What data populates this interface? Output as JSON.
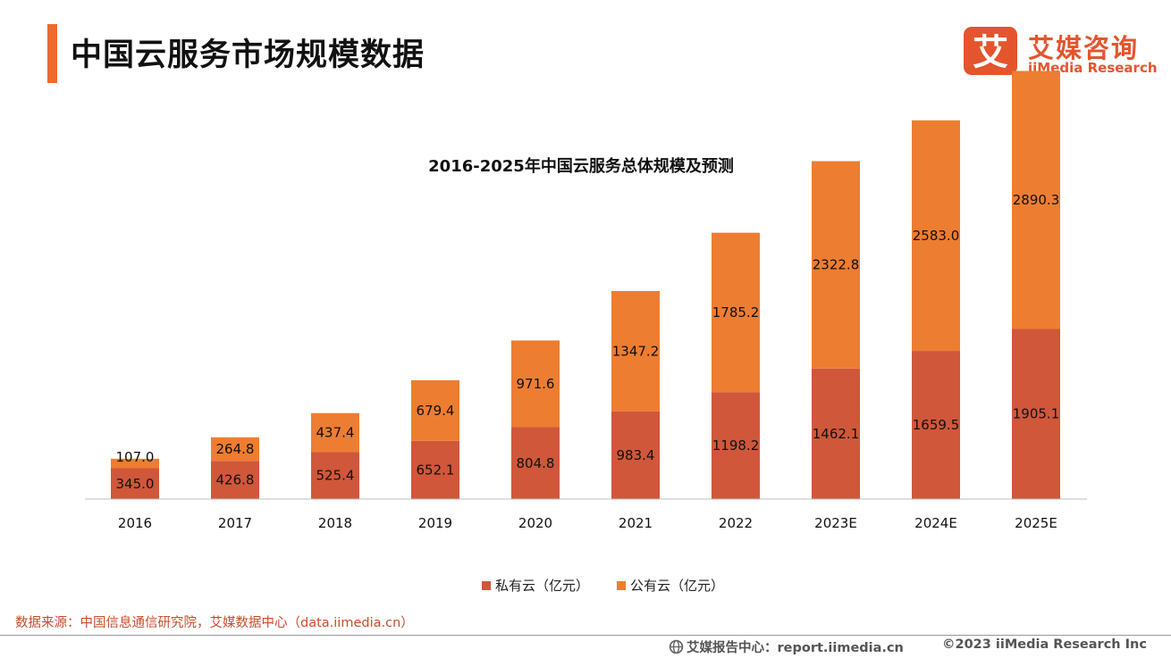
{
  "header": {
    "title": "中国云服务市场规模数据",
    "accent_color": "#ee6a2e"
  },
  "logo": {
    "mark_glyph": "艾",
    "name_cn": "艾媒咨询",
    "name_en": "iiMedia Research",
    "color": "#e4552d"
  },
  "chart_data": {
    "type": "bar",
    "stacked": true,
    "title": "2016-2025年中国云服务总体规模及预测",
    "categories": [
      "2016",
      "2017",
      "2018",
      "2019",
      "2020",
      "2021",
      "2022",
      "2023E",
      "2024E",
      "2025E"
    ],
    "series": [
      {
        "name": "私有云（亿元）",
        "color": "#d0573a",
        "values": [
          345.0,
          426.8,
          525.4,
          652.1,
          804.8,
          983.4,
          1198.2,
          1462.1,
          1659.5,
          1905.1
        ],
        "labels": [
          "345.0",
          "426.8",
          "525.4",
          "652.1",
          "804.8",
          "983.4",
          "1198.2",
          "1462.1",
          "1659.5",
          "1905.1"
        ]
      },
      {
        "name": "公有云（亿元）",
        "color": "#ed7d31",
        "values": [
          107.0,
          264.8,
          437.4,
          679.4,
          971.6,
          1347.2,
          1785.2,
          2322.8,
          2583.0,
          2890.3
        ],
        "labels": [
          "107.0",
          "264.8",
          "437.4",
          "679.4",
          "971.6",
          "1347.2",
          "1785.2",
          "2322.8",
          "2583.0",
          "2890.3"
        ]
      }
    ],
    "ylim": [
      0,
      4800
    ],
    "y_axis_visible": false,
    "grid": false,
    "legend": "bottom"
  },
  "footer": {
    "source": "数据来源：中国信息通信研究院，艾媒数据中心（data.iimedia.cn）",
    "report_center": "艾媒报告中心：report.iimedia.cn",
    "copyright": "©2023  iiMedia Research  Inc"
  }
}
